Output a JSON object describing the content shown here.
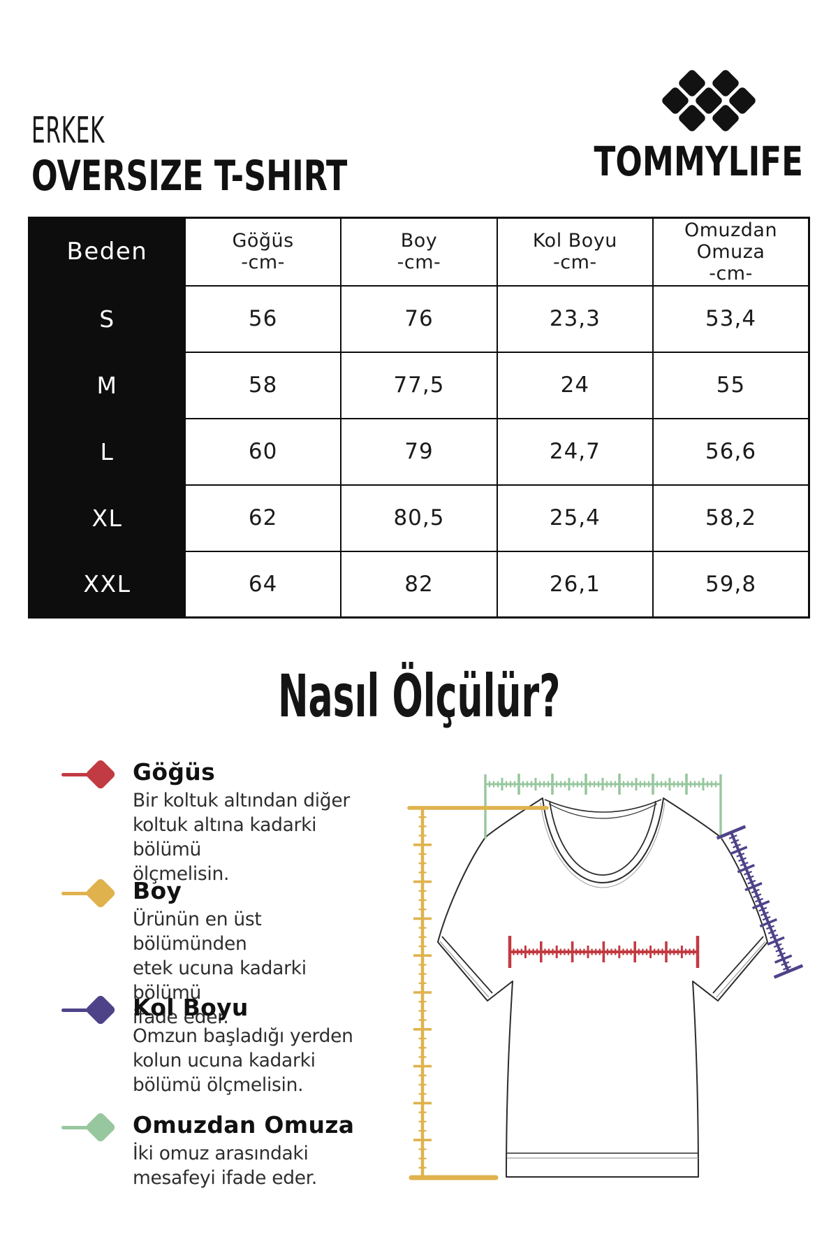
{
  "header": {
    "category": "ERKEK",
    "product": "OVERSIZE T-SHIRT",
    "brand": "TOMMYLIFE"
  },
  "size_table": {
    "corner_label": "Beden",
    "columns": [
      {
        "lines": [
          "Göğüs",
          "-cm-"
        ]
      },
      {
        "lines": [
          "Boy",
          "-cm-"
        ]
      },
      {
        "lines": [
          "Kol Boyu",
          "-cm-"
        ]
      },
      {
        "lines": [
          "Omuzdan",
          "Omuza",
          "-cm-"
        ]
      }
    ],
    "rows": [
      {
        "size": "S",
        "values": [
          "56",
          "76",
          "23,3",
          "53,4"
        ]
      },
      {
        "size": "M",
        "values": [
          "58",
          "77,5",
          "24",
          "55"
        ]
      },
      {
        "size": "L",
        "values": [
          "60",
          "79",
          "24,7",
          "56,6"
        ]
      },
      {
        "size": "XL",
        "values": [
          "62",
          "80,5",
          "25,4",
          "58,2"
        ]
      },
      {
        "size": "XXL",
        "values": [
          "64",
          "82",
          "26,1",
          "59,8"
        ]
      }
    ]
  },
  "how_to_measure": {
    "title": "Nasıl Ölçülür?",
    "items": [
      {
        "label": "Göğüs",
        "color": "#C23B42",
        "description_lines": [
          "Bir koltuk altından diğer",
          "koltuk altına kadarki bölümü",
          "ölçmelisin."
        ]
      },
      {
        "label": "Boy",
        "color": "#DFB24D",
        "description_lines": [
          "Ürünün en üst bölümünden",
          "etek ucuna kadarki bölümü",
          "ifade eder."
        ]
      },
      {
        "label": "Kol Boyu",
        "color": "#4E4389",
        "description_lines": [
          "Omzun başladığı yerden",
          "kolun ucuna kadarki",
          "bölümü ölçmelisin."
        ]
      },
      {
        "label": "Omuzdan Omuza",
        "color": "#97C79E",
        "description_lines": [
          "İki omuz arasındaki",
          "mesafeyi ifade eder."
        ]
      }
    ]
  },
  "colors": {
    "ink": "#0d0d0d",
    "chest_ruler": "#C23B42",
    "length_ruler": "#DFB24D",
    "sleeve_ruler": "#4E4389",
    "shoulder_ruler": "#97C79E"
  }
}
